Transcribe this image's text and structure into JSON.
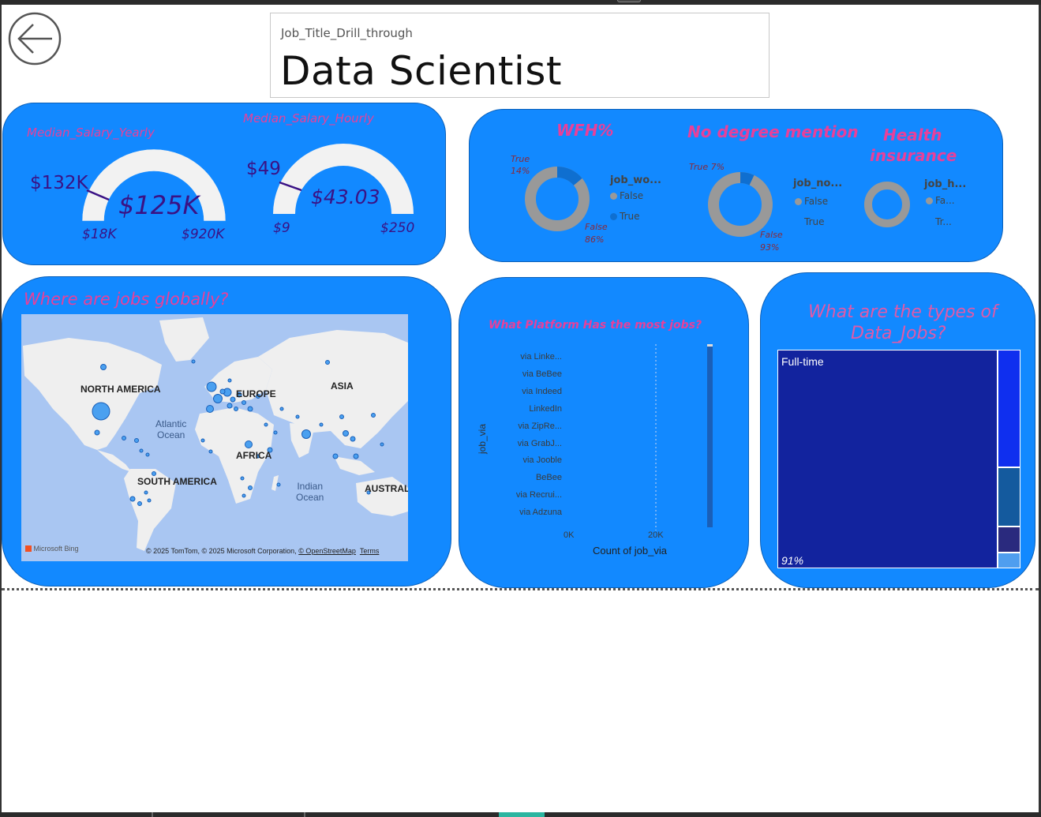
{
  "drill": {
    "caption": "Job_Title_Drill_through",
    "value": "Data Scientist"
  },
  "salary": {
    "yearly": {
      "title": "Median_Salary_Yearly",
      "value_label": "$125K",
      "target_label": "$132K",
      "min_label": "$18K",
      "max_label": "$920K",
      "value": 125,
      "target": 132,
      "min": 18,
      "max": 920
    },
    "hourly": {
      "title": "Median_Salary_Hourly",
      "value_label": "$43.03",
      "target_label": "$49",
      "min_label": "$9",
      "max_label": "$250",
      "value": 43.03,
      "target": 49,
      "min": 9,
      "max": 250
    }
  },
  "donuts": {
    "wfh": {
      "title": "WFH%",
      "legend_title": "job_wo...",
      "legend": [
        "False",
        "True"
      ],
      "true_label": "True",
      "true_pct": "14%",
      "false_label": "False",
      "false_pct": "86%",
      "true_value": 14,
      "false_value": 86
    },
    "degree": {
      "title": "No degree mention",
      "legend_title": "job_no...",
      "legend": [
        "False",
        "True"
      ],
      "true_label": "True 7%",
      "false_label": "False",
      "false_pct": "93%",
      "true_value": 7,
      "false_value": 93
    },
    "health": {
      "title_line1": "Health",
      "title_line2": "insurance",
      "legend_title": "job_h...",
      "legend": [
        "Fa...",
        "Tr..."
      ]
    },
    "colors": {
      "false": "#999999",
      "true": "#0f6fd0"
    }
  },
  "map": {
    "title": "Where are jobs globally?",
    "labels": {
      "north_america": "NORTH AMERICA",
      "europe": "EUROPE",
      "asia": "ASIA",
      "africa": "AFRICA",
      "south_america": "SOUTH AMERICA",
      "australia": "AUSTRALI"
    },
    "atlantic": [
      "Atlantic",
      "Ocean"
    ],
    "indian": [
      "Indian",
      "Ocean"
    ],
    "brand": "Microsoft Bing",
    "credit": "© 2025 TomTom, © 2025 Microsoft Corporation,",
    "osm": "© OpenStreetMap",
    "terms": "Terms"
  },
  "platform": {
    "title": "What Platform Has the most jobs?",
    "y_axis": "job_via",
    "x_axis": "Count of job_via",
    "ticks": [
      "0K",
      "20K"
    ]
  },
  "chart_data": {
    "type": "bar",
    "title": "What Platform Has the most jobs?",
    "xlabel": "Count of job_via",
    "ylabel": "job_via",
    "categories": [
      "via Linke...",
      "via BeBee",
      "via Indeed",
      "LinkedIn",
      "via ZipRe...",
      "via GrabJ...",
      "via Jooble",
      "BeBee",
      "via Recrui...",
      "via Adzuna"
    ],
    "values": [
      0,
      0,
      0,
      0,
      0,
      0,
      0,
      0,
      0,
      0
    ],
    "xticks": [
      "0K",
      "20K"
    ],
    "grid": true
  },
  "treemap": {
    "title_line1": "What are the types of",
    "title_line2": "Data_Jobs?",
    "main_label": "Full-time",
    "main_pct": "91%",
    "colors": [
      "#12239e",
      "#0f2fef",
      "#145a9e",
      "#2a2a7e",
      "#4f9eef"
    ]
  }
}
